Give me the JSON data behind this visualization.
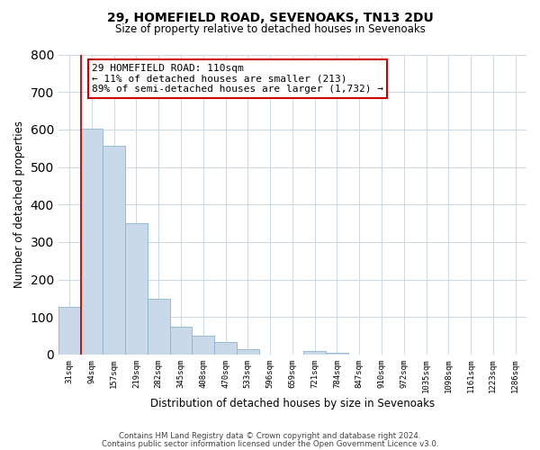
{
  "title1": "29, HOMEFIELD ROAD, SEVENOAKS, TN13 2DU",
  "title2": "Size of property relative to detached houses in Sevenoaks",
  "xlabel": "Distribution of detached houses by size in Sevenoaks",
  "ylabel": "Number of detached properties",
  "bin_labels": [
    "31sqm",
    "94sqm",
    "157sqm",
    "219sqm",
    "282sqm",
    "345sqm",
    "408sqm",
    "470sqm",
    "533sqm",
    "596sqm",
    "659sqm",
    "721sqm",
    "784sqm",
    "847sqm",
    "910sqm",
    "972sqm",
    "1035sqm",
    "1098sqm",
    "1161sqm",
    "1223sqm",
    "1286sqm"
  ],
  "bar_heights": [
    128,
    601,
    557,
    349,
    148,
    75,
    50,
    33,
    15,
    0,
    0,
    10,
    5,
    0,
    0,
    0,
    0,
    0,
    0,
    0,
    0
  ],
  "bar_color": "#c9d9ea",
  "bar_edge_color": "#8ab4cc",
  "ylim": [
    0,
    800
  ],
  "yticks": [
    0,
    100,
    200,
    300,
    400,
    500,
    600,
    700,
    800
  ],
  "vline_color": "#cc0000",
  "annotation_box_text": "29 HOMEFIELD ROAD: 110sqm\n← 11% of detached houses are smaller (213)\n89% of semi-detached houses are larger (1,732) →",
  "annotation_box_color": "#cc0000",
  "footer1": "Contains HM Land Registry data © Crown copyright and database right 2024.",
  "footer2": "Contains public sector information licensed under the Open Government Licence v3.0.",
  "bg_color": "#ffffff",
  "grid_color": "#ccd8e4"
}
